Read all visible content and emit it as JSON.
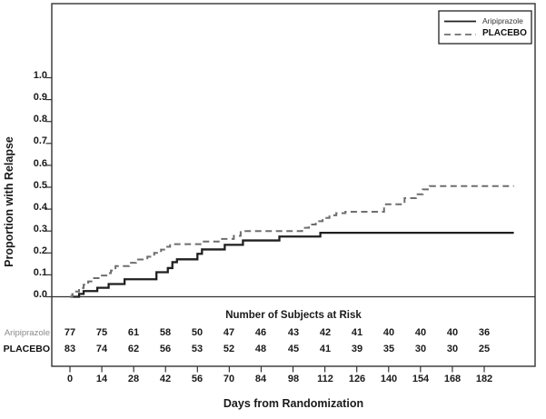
{
  "figure": {
    "background": "#ffffff",
    "axis_color": "#333333"
  },
  "y_axis": {
    "title": "Proportion with Relapse",
    "tick_labels": [
      "1.0",
      "0.9",
      "0.8",
      "0.7",
      "0.6",
      "0.5",
      "0.4",
      "0.3",
      "0.2",
      "0.1",
      "0.0"
    ]
  },
  "x_axis": {
    "title": "Days from Randomization",
    "tick_labels": [
      "0",
      "14",
      "28",
      "42",
      "56",
      "70",
      "84",
      "98",
      "112",
      "126",
      "140",
      "154",
      "168",
      "182"
    ]
  },
  "legend": {
    "entries": [
      {
        "label": "Aripiprazole",
        "line": "solid",
        "color": "#1f1f1f"
      },
      {
        "label": "PLACEBO",
        "line": "dashed",
        "color": "#6e6e6e"
      }
    ]
  },
  "chart_data": {
    "type": "line",
    "subtype": "kaplan-meier-step",
    "title": "",
    "xlabel": "Days from Randomization",
    "ylabel": "Proportion with Relapse",
    "x_ticks": [
      0,
      14,
      28,
      42,
      56,
      70,
      84,
      98,
      112,
      126,
      140,
      154,
      168,
      182
    ],
    "y_ticks": [
      0.0,
      0.1,
      0.2,
      0.3,
      0.4,
      0.5,
      0.6,
      0.7,
      0.8,
      0.9,
      1.0
    ],
    "xlim": [
      -8,
      204
    ],
    "ylim": [
      0,
      1.0
    ],
    "grid": false,
    "legend_position": "top-right",
    "series": [
      {
        "name": "Aripiprazole",
        "line": "solid",
        "color": "#1f1f1f",
        "x": [
          0,
          4,
          6,
          12,
          17,
          24,
          38,
          43,
          45,
          47,
          56,
          58,
          68,
          76,
          92,
          110,
          195
        ],
        "y": [
          0,
          0.013,
          0.026,
          0.041,
          0.058,
          0.08,
          0.112,
          0.131,
          0.158,
          0.171,
          0.196,
          0.216,
          0.237,
          0.257,
          0.275,
          0.292,
          0.292
        ]
      },
      {
        "name": "PLACEBO",
        "line": "dashed",
        "color": "#6e6e6e",
        "x": [
          0,
          1,
          2,
          4,
          6,
          8,
          10,
          13,
          16,
          18,
          20,
          26,
          29,
          34,
          37,
          40,
          42,
          44,
          58,
          66,
          72,
          75,
          102,
          105,
          108,
          111,
          114,
          117,
          121,
          138,
          147,
          152,
          155,
          158,
          195
        ],
        "y": [
          0,
          0.012,
          0.024,
          0.04,
          0.055,
          0.07,
          0.085,
          0.097,
          0.108,
          0.12,
          0.14,
          0.155,
          0.17,
          0.183,
          0.2,
          0.215,
          0.228,
          0.24,
          0.252,
          0.264,
          0.278,
          0.3,
          0.315,
          0.33,
          0.345,
          0.36,
          0.372,
          0.382,
          0.388,
          0.422,
          0.45,
          0.468,
          0.49,
          0.505,
          0.505
        ]
      }
    ],
    "at_risk_table": {
      "title": "Number of Subjects at Risk",
      "timepoints": [
        0,
        14,
        28,
        42,
        56,
        70,
        84,
        98,
        112,
        126,
        140,
        154,
        168,
        182
      ],
      "rows": [
        {
          "label": "Aripiprazole",
          "values": [
            77,
            75,
            61,
            58,
            50,
            47,
            46,
            43,
            42,
            41,
            40,
            40,
            40,
            36
          ]
        },
        {
          "label": "PLACEBO",
          "values": [
            83,
            74,
            62,
            56,
            53,
            52,
            48,
            45,
            41,
            39,
            35,
            30,
            30,
            25
          ]
        }
      ]
    }
  }
}
